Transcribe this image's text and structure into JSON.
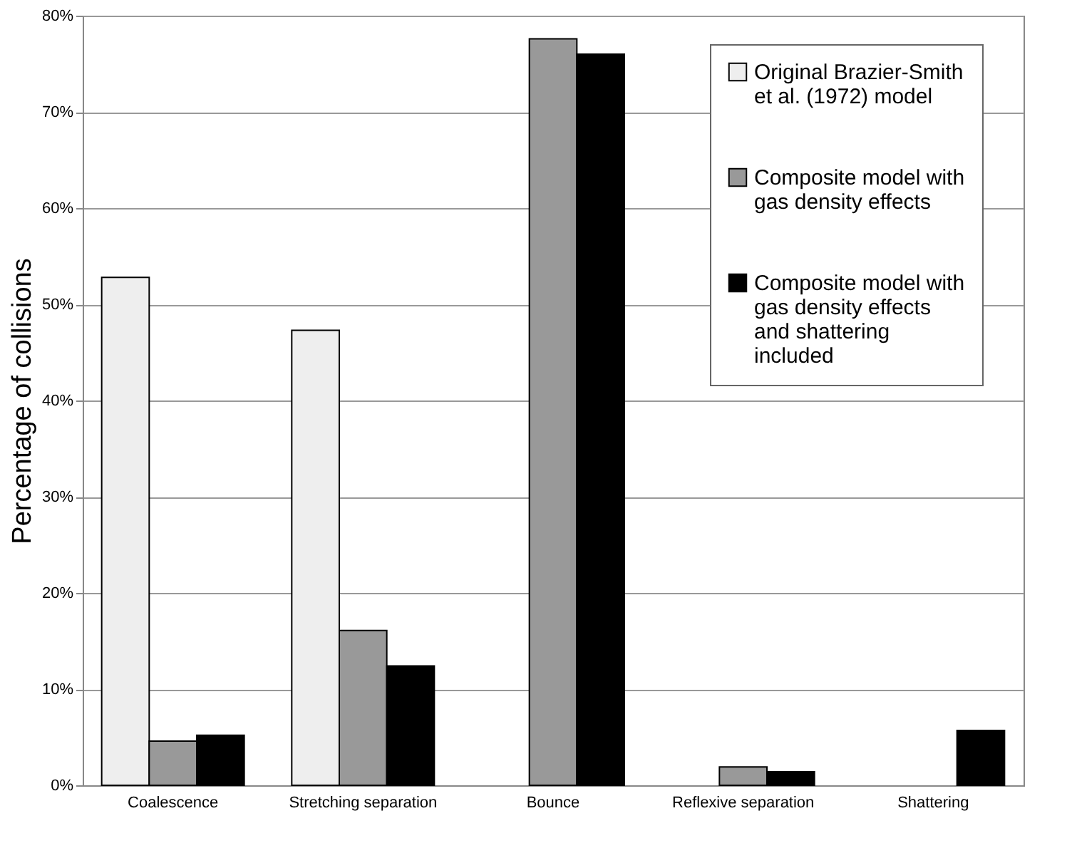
{
  "chart_data": {
    "type": "bar",
    "ylabel": "Percentage of collisions",
    "categories": [
      "Coalescence",
      "Stretching separation",
      "Bounce",
      "Reflexive separation",
      "Shattering"
    ],
    "series": [
      {
        "name": "Original Brazier-Smith et al. (1972) model",
        "color": "#eeeeee",
        "values": [
          52.8,
          47.3,
          null,
          null,
          null
        ]
      },
      {
        "name": "Composite model with gas density effects",
        "color": "#999999",
        "values": [
          4.6,
          16.1,
          77.6,
          1.9,
          null
        ]
      },
      {
        "name": "Composite model with gas density effects and shattering included",
        "color": "#000000",
        "values": [
          5.2,
          12.4,
          76.0,
          1.4,
          5.7
        ]
      }
    ],
    "ylim": [
      0,
      80
    ],
    "yticks": [
      {
        "value": 0,
        "label": "0%"
      },
      {
        "value": 10,
        "label": "10%"
      },
      {
        "value": 20,
        "label": "20%"
      },
      {
        "value": 30,
        "label": "30%"
      },
      {
        "value": 40,
        "label": "40%"
      },
      {
        "value": 50,
        "label": "50%"
      },
      {
        "value": 60,
        "label": "60%"
      },
      {
        "value": 70,
        "label": "70%"
      },
      {
        "value": 80,
        "label": "80%"
      }
    ],
    "grid": "y",
    "legend": "top right"
  }
}
